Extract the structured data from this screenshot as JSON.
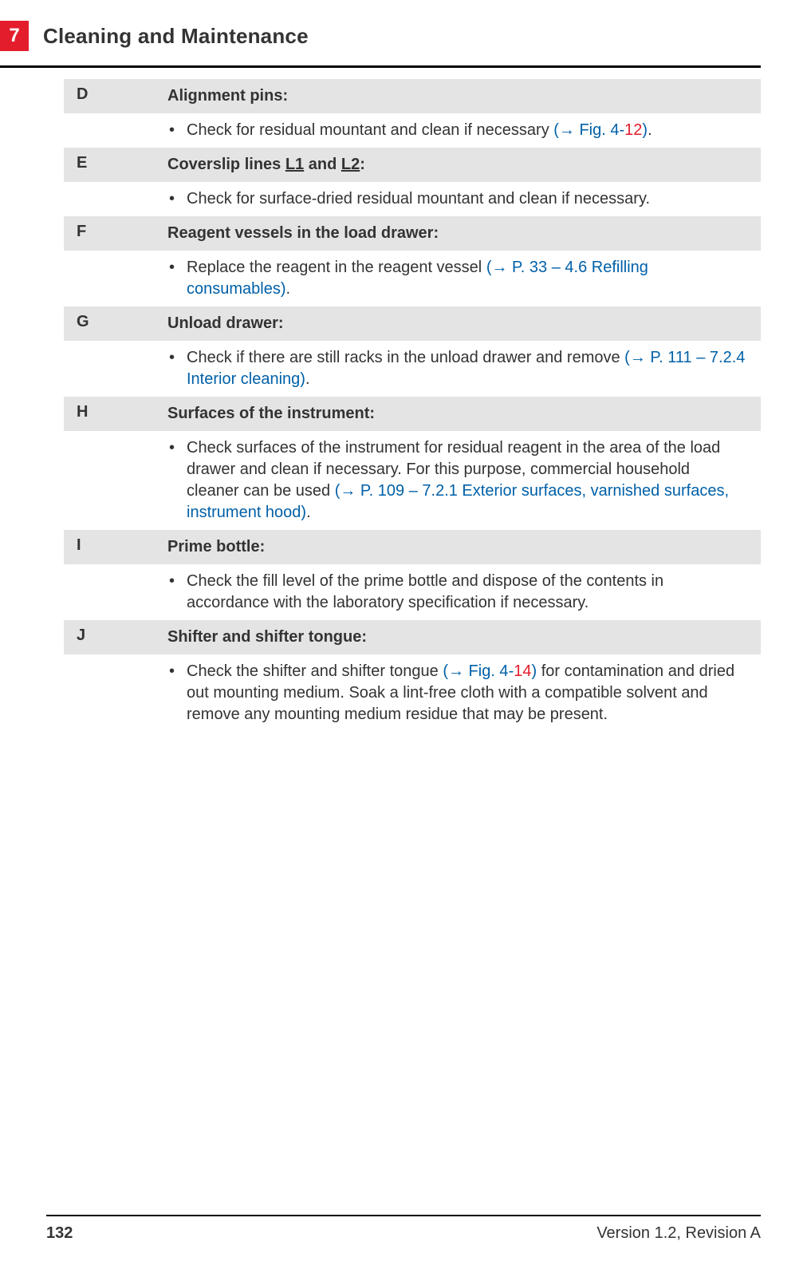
{
  "header": {
    "chapter_number": "7",
    "chapter_title": "Cleaning and Maintenance"
  },
  "rows": [
    {
      "letter": "D",
      "title_parts": [
        {
          "t": "Alignment pins:"
        }
      ],
      "bullets": [
        [
          {
            "t": "Check for residual mountant and clean if necessary "
          },
          {
            "t": "(→ Fig.  4",
            "cls": "link-blue"
          },
          {
            "t": "-",
            "cls": "link-blue"
          },
          {
            "t": "12",
            "cls": "link-red"
          },
          {
            "t": ")",
            "cls": "link-blue"
          },
          {
            "t": "."
          }
        ]
      ]
    },
    {
      "letter": "E",
      "title_parts": [
        {
          "t": "Coverslip lines "
        },
        {
          "t": "L1",
          "cls": "underline"
        },
        {
          "t": " and "
        },
        {
          "t": "L2",
          "cls": "underline"
        },
        {
          "t": ":"
        }
      ],
      "bullets": [
        [
          {
            "t": "Check for surface-dried residual mountant and clean if necessary."
          }
        ]
      ]
    },
    {
      "letter": "F",
      "title_parts": [
        {
          "t": "Reagent vessels in the load drawer:"
        }
      ],
      "bullets": [
        [
          {
            "t": "Replace the reagent in the reagent vessel "
          },
          {
            "t": "(→ P. 33 – 4.6 Refilling consumables)",
            "cls": "link-blue"
          },
          {
            "t": "."
          }
        ]
      ]
    },
    {
      "letter": "G",
      "title_parts": [
        {
          "t": "Unload drawer:"
        }
      ],
      "bullets": [
        [
          {
            "t": "Check if there are still racks in the unload drawer and remove "
          },
          {
            "t": "(→ P. 111 – 7.2.4 Interior cleaning)",
            "cls": "link-blue"
          },
          {
            "t": "."
          }
        ]
      ]
    },
    {
      "letter": "H",
      "title_parts": [
        {
          "t": "Surfaces of the instrument:"
        }
      ],
      "bullets": [
        [
          {
            "t": "Check surfaces of the instrument for residual reagent in the area of the load drawer and clean if necessary. For this purpose, commercial household cleaner can be used "
          },
          {
            "t": "(→ P. 109 – 7.2.1 Exterior surfaces, varnished surfaces, instrument hood)",
            "cls": "link-blue"
          },
          {
            "t": "."
          }
        ]
      ]
    },
    {
      "letter": "I",
      "title_parts": [
        {
          "t": "Prime bottle:"
        }
      ],
      "bullets": [
        [
          {
            "t": "Check the fill level of the prime bottle and dispose of the contents in accordance with the laboratory specification if necessary."
          }
        ]
      ]
    },
    {
      "letter": "J",
      "title_parts": [
        {
          "t": "Shifter and shifter tongue:"
        }
      ],
      "bullets": [
        [
          {
            "t": "Check the shifter and shifter tongue "
          },
          {
            "t": "(→ Fig.  4",
            "cls": "link-blue"
          },
          {
            "t": "-",
            "cls": "link-blue"
          },
          {
            "t": "14",
            "cls": "link-red"
          },
          {
            "t": ")",
            "cls": "link-blue"
          },
          {
            "t": " for contamination and dried out mounting medium. Soak a lint-free cloth with a compatible solvent and remove any mounting medium residue that may be present."
          }
        ]
      ]
    }
  ],
  "footer": {
    "page_number": "132",
    "version": "Version 1.2, Revision A"
  },
  "colors": {
    "badge_bg": "#e31d2c",
    "header_row_bg": "#e4e4e4",
    "link_blue": "#0060a8",
    "link_red": "#e31d2c"
  }
}
